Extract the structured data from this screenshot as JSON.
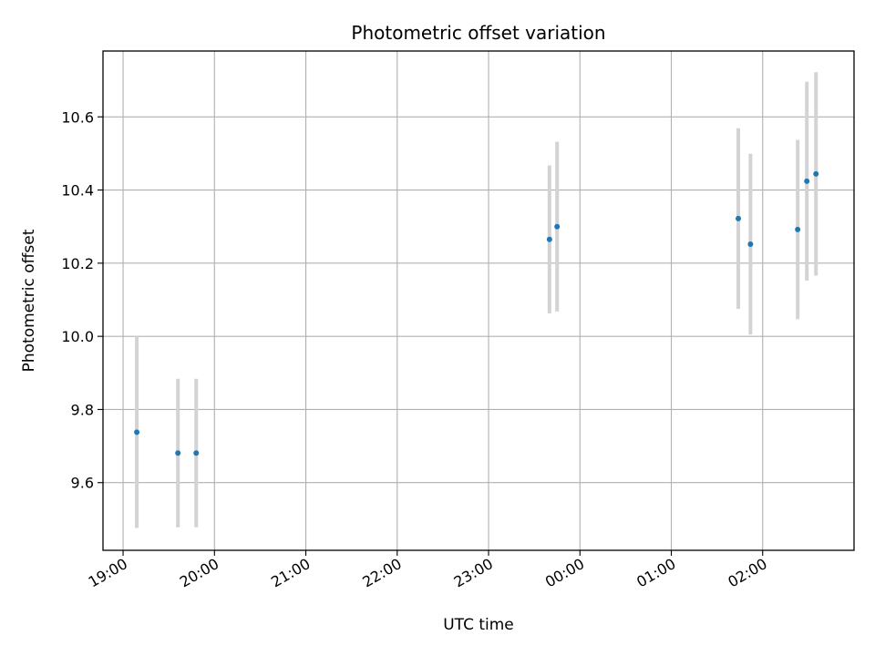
{
  "chart_data": {
    "type": "scatter",
    "title": "Photometric offset variation",
    "xlabel": "UTC time",
    "ylabel": "Photometric offset",
    "x_tick_labels": [
      "19:00",
      "20:00",
      "21:00",
      "22:00",
      "23:00",
      "00:00",
      "01:00",
      "02:00"
    ],
    "x_tick_hours": [
      0,
      1,
      2,
      3,
      4,
      5,
      6,
      7
    ],
    "x_origin_label": "19:00",
    "xlim_hours": [
      -0.22,
      8.0
    ],
    "y_ticks": [
      9.6,
      9.8,
      10.0,
      10.2,
      10.4,
      10.6
    ],
    "ylim": [
      9.415,
      10.78
    ],
    "grid": true,
    "point_color": "#1f77b4",
    "errorbar_color": "#d3d3d3",
    "points": [
      {
        "time": "19:09",
        "y": 9.738,
        "err": 0.262
      },
      {
        "time": "19:36",
        "y": 9.681,
        "err": 0.203
      },
      {
        "time": "19:48",
        "y": 9.681,
        "err": 0.203
      },
      {
        "time": "23:40",
        "y": 10.265,
        "err": 0.202
      },
      {
        "time": "23:45",
        "y": 10.3,
        "err": 0.232
      },
      {
        "time": "01:44",
        "y": 10.322,
        "err": 0.247
      },
      {
        "time": "01:52",
        "y": 10.252,
        "err": 0.247
      },
      {
        "time": "02:23",
        "y": 10.292,
        "err": 0.245
      },
      {
        "time": "02:29",
        "y": 10.424,
        "err": 0.272
      },
      {
        "time": "02:35",
        "y": 10.444,
        "err": 0.278
      }
    ]
  }
}
